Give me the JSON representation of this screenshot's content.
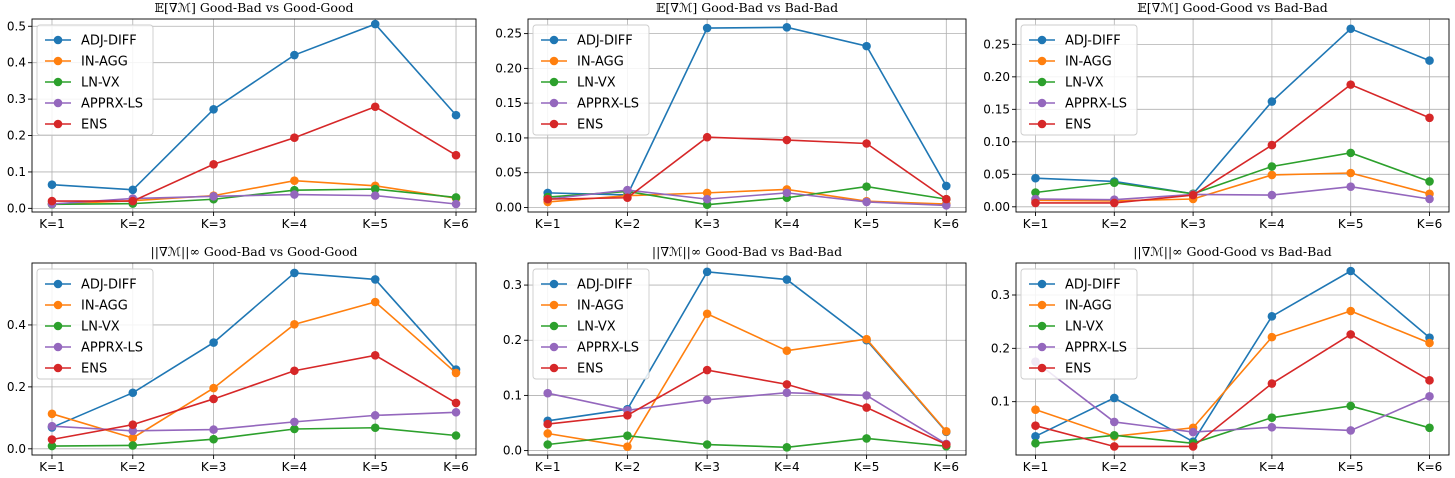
{
  "series_styles": [
    {
      "name": "ADJ-DIFF",
      "color": "#1f77b4"
    },
    {
      "name": "IN-AGG",
      "color": "#ff7f0e"
    },
    {
      "name": "LN-VX",
      "color": "#2ca02c"
    },
    {
      "name": "APPRX-LS",
      "color": "#9467bd"
    },
    {
      "name": "ENS",
      "color": "#d62728"
    }
  ],
  "chart_data": [
    {
      "type": "line",
      "title": "𝔼[∇ℳ] Good-Bad vs Good-Good",
      "categories": [
        "K=1",
        "K=2",
        "K=3",
        "K=4",
        "K=5",
        "K=6"
      ],
      "ylim": [
        -0.01,
        0.52
      ],
      "yticks": [
        "0.0",
        "0.1",
        "0.2",
        "0.3",
        "0.4",
        "0.5"
      ],
      "legend": "upper-left",
      "series": [
        {
          "name": "ADJ-DIFF",
          "values": [
            0.065,
            0.051,
            0.272,
            0.421,
            0.506,
            0.256
          ]
        },
        {
          "name": "IN-AGG",
          "values": [
            0.012,
            0.021,
            0.035,
            0.076,
            0.062,
            0.028
          ]
        },
        {
          "name": "LN-VX",
          "values": [
            0.011,
            0.013,
            0.025,
            0.05,
            0.053,
            0.03
          ]
        },
        {
          "name": "APPRX-LS",
          "values": [
            0.012,
            0.027,
            0.033,
            0.038,
            0.035,
            0.012
          ]
        },
        {
          "name": "ENS",
          "values": [
            0.02,
            0.02,
            0.121,
            0.194,
            0.279,
            0.146
          ]
        }
      ]
    },
    {
      "type": "line",
      "title": "𝔼[∇ℳ] Good-Bad vs Bad-Bad",
      "categories": [
        "K=1",
        "K=2",
        "K=3",
        "K=4",
        "K=5",
        "K=6"
      ],
      "ylim": [
        -0.0065,
        0.271
      ],
      "yticks": [
        "0.00",
        "0.05",
        "0.10",
        "0.15",
        "0.20",
        "0.25"
      ],
      "legend": "upper-left",
      "series": [
        {
          "name": "ADJ-DIFF",
          "values": [
            0.021,
            0.018,
            0.258,
            0.259,
            0.232,
            0.031
          ]
        },
        {
          "name": "IN-AGG",
          "values": [
            0.008,
            0.017,
            0.021,
            0.026,
            0.009,
            0.005
          ]
        },
        {
          "name": "LN-VX",
          "values": [
            0.015,
            0.023,
            0.004,
            0.014,
            0.03,
            0.012
          ]
        },
        {
          "name": "APPRX-LS",
          "values": [
            0.012,
            0.025,
            0.012,
            0.021,
            0.008,
            0.003
          ]
        },
        {
          "name": "ENS",
          "values": [
            0.012,
            0.014,
            0.101,
            0.097,
            0.092,
            0.012
          ]
        }
      ]
    },
    {
      "type": "line",
      "title": "𝔼[∇ℳ] Good-Good vs Bad-Bad",
      "categories": [
        "K=1",
        "K=2",
        "K=3",
        "K=4",
        "K=5",
        "K=6"
      ],
      "ylim": [
        -0.008,
        0.289
      ],
      "yticks": [
        "0.00",
        "0.05",
        "0.10",
        "0.15",
        "0.20",
        "0.25"
      ],
      "legend": "upper-left",
      "series": [
        {
          "name": "ADJ-DIFF",
          "values": [
            0.044,
            0.039,
            0.02,
            0.162,
            0.274,
            0.225
          ]
        },
        {
          "name": "IN-AGG",
          "values": [
            0.01,
            0.009,
            0.012,
            0.049,
            0.052,
            0.02
          ]
        },
        {
          "name": "LN-VX",
          "values": [
            0.022,
            0.037,
            0.02,
            0.062,
            0.083,
            0.039
          ]
        },
        {
          "name": "APPRX-LS",
          "values": [
            0.012,
            0.011,
            0.019,
            0.018,
            0.031,
            0.012
          ]
        },
        {
          "name": "ENS",
          "values": [
            0.006,
            0.006,
            0.018,
            0.095,
            0.188,
            0.137
          ]
        }
      ]
    },
    {
      "type": "line",
      "title": "||∇ℳ||∞ Good-Bad vs Good-Good",
      "categories": [
        "K=1",
        "K=2",
        "K=3",
        "K=4",
        "K=5",
        "K=6"
      ],
      "ylim": [
        -0.02,
        0.6
      ],
      "yticks": [
        "0.0",
        "0.2",
        "0.4"
      ],
      "legend": "upper-left",
      "series": [
        {
          "name": "ADJ-DIFF",
          "values": [
            0.069,
            0.181,
            0.343,
            0.568,
            0.547,
            0.256
          ]
        },
        {
          "name": "IN-AGG",
          "values": [
            0.113,
            0.035,
            0.196,
            0.402,
            0.474,
            0.245
          ]
        },
        {
          "name": "LN-VX",
          "values": [
            0.009,
            0.011,
            0.031,
            0.064,
            0.068,
            0.043
          ]
        },
        {
          "name": "APPRX-LS",
          "values": [
            0.073,
            0.058,
            0.062,
            0.087,
            0.108,
            0.118
          ]
        },
        {
          "name": "ENS",
          "values": [
            0.03,
            0.078,
            0.161,
            0.252,
            0.302,
            0.148
          ]
        }
      ]
    },
    {
      "type": "line",
      "title": "||∇ℳ||∞ Good-Bad vs Bad-Bad",
      "categories": [
        "K=1",
        "K=2",
        "K=3",
        "K=4",
        "K=5",
        "K=6"
      ],
      "ylim": [
        -0.008,
        0.34
      ],
      "yticks": [
        "0.0",
        "0.1",
        "0.2",
        "0.3"
      ],
      "legend": "upper-left",
      "series": [
        {
          "name": "ADJ-DIFF",
          "values": [
            0.054,
            0.075,
            0.324,
            0.31,
            0.2,
            0.034
          ]
        },
        {
          "name": "IN-AGG",
          "values": [
            0.031,
            0.007,
            0.248,
            0.181,
            0.202,
            0.035
          ]
        },
        {
          "name": "LN-VX",
          "values": [
            0.011,
            0.027,
            0.011,
            0.006,
            0.022,
            0.008
          ]
        },
        {
          "name": "APPRX-LS",
          "values": [
            0.104,
            0.073,
            0.092,
            0.105,
            0.1,
            0.012
          ]
        },
        {
          "name": "ENS",
          "values": [
            0.048,
            0.064,
            0.146,
            0.12,
            0.078,
            0.011
          ]
        }
      ]
    },
    {
      "type": "line",
      "title": "||∇ℳ||∞ Good-Good vs Bad-Bad",
      "categories": [
        "K=1",
        "K=2",
        "K=3",
        "K=4",
        "K=5",
        "K=6"
      ],
      "ylim": [
        0.0,
        0.36
      ],
      "yticks": [
        "0.1",
        "0.2",
        "0.3"
      ],
      "legend": "upper-left",
      "series": [
        {
          "name": "ADJ-DIFF",
          "values": [
            0.035,
            0.107,
            0.025,
            0.26,
            0.345,
            0.22
          ]
        },
        {
          "name": "IN-AGG",
          "values": [
            0.085,
            0.035,
            0.051,
            0.221,
            0.27,
            0.21
          ]
        },
        {
          "name": "LN-VX",
          "values": [
            0.022,
            0.037,
            0.022,
            0.07,
            0.092,
            0.051
          ]
        },
        {
          "name": "APPRX-LS",
          "values": [
            0.175,
            0.062,
            0.043,
            0.052,
            0.046,
            0.11
          ]
        },
        {
          "name": "ENS",
          "values": [
            0.055,
            0.016,
            0.016,
            0.134,
            0.226,
            0.14
          ]
        }
      ]
    }
  ]
}
